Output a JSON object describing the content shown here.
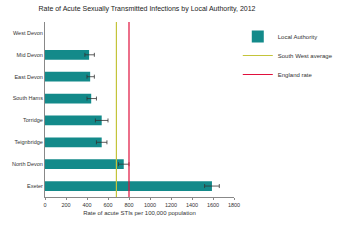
{
  "chart_data": {
    "type": "bar",
    "orientation": "horizontal",
    "title": "Rate of Acute Sexually Transmitted Infections by Local Authority, 2012",
    "x_label": "Rate of acute STIs per 100,000 population",
    "categories": [
      "West Devon",
      "Mid Devon",
      "East Devon",
      "South Hams",
      "Torridge",
      "Teignbridge",
      "North Devon",
      "Exeter"
    ],
    "series": [
      {
        "name": "Local Authority",
        "color": "#138a8a",
        "values": [
          null,
          420,
          430,
          440,
          540,
          540,
          750,
          1590
        ],
        "ci_lower": [
          null,
          380,
          400,
          400,
          480,
          490,
          700,
          1520
        ],
        "ci_upper": [
          null,
          470,
          470,
          490,
          600,
          590,
          800,
          1660
        ]
      }
    ],
    "reference_lines": [
      {
        "name": "South West average",
        "value": 680,
        "color": "#c4c43a"
      },
      {
        "name": "England rate",
        "value": 800,
        "color": "#e0103c"
      }
    ],
    "xlim": [
      0,
      1800
    ],
    "xticks": [
      0,
      200,
      400,
      600,
      800,
      1000,
      1200,
      1400,
      1600,
      1800
    ],
    "grid": false,
    "legend": "right"
  }
}
